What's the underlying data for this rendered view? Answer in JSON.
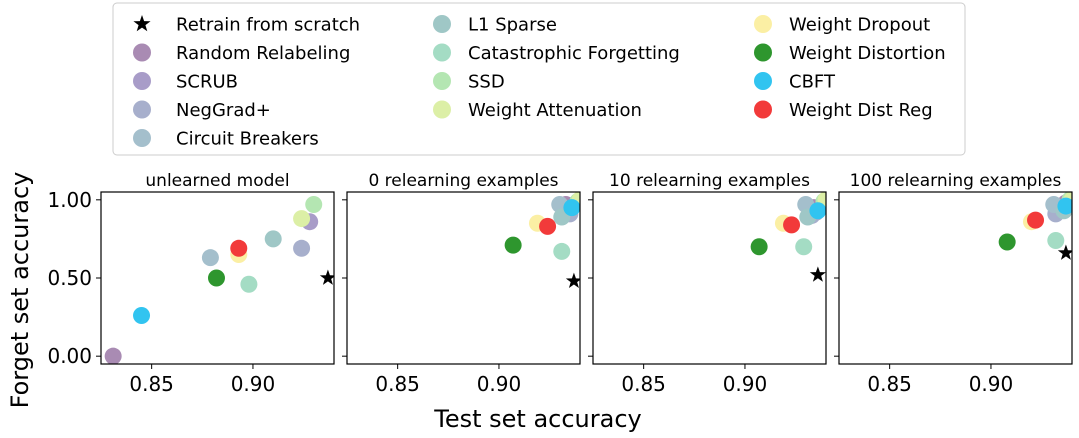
{
  "methods": [
    {
      "name": "Retrain from scratch",
      "color": "#000000",
      "marker": "star"
    },
    {
      "name": "Random Relabeling",
      "color": "#a98bb3",
      "marker": "circle"
    },
    {
      "name": "SCRUB",
      "color": "#a89cc8",
      "marker": "circle"
    },
    {
      "name": "NegGrad+",
      "color": "#a7afcc",
      "marker": "circle"
    },
    {
      "name": "Circuit Breakers",
      "color": "#a4bfcc",
      "marker": "circle"
    },
    {
      "name": "L1 Sparse",
      "color": "#9fc7c6",
      "marker": "circle"
    },
    {
      "name": "Catastrophic Forgetting",
      "color": "#a4dcc4",
      "marker": "circle"
    },
    {
      "name": "SSD",
      "color": "#b4e6b2",
      "marker": "circle"
    },
    {
      "name": "Weight Attenuation",
      "color": "#dcefa6",
      "marker": "circle"
    },
    {
      "name": "Weight Dropout",
      "color": "#fbefa4",
      "marker": "circle"
    },
    {
      "name": "Weight Distortion",
      "color": "#2e962e",
      "marker": "circle"
    },
    {
      "name": "CBFT",
      "color": "#31c4f0",
      "marker": "circle"
    },
    {
      "name": "Weight Dist Reg",
      "color": "#f23a3a",
      "marker": "circle"
    }
  ],
  "chart_data": {
    "type": "scatter",
    "xlabel": "Test set accuracy",
    "ylabel": "Forget set accuracy",
    "xlim": [
      0.825,
      0.94
    ],
    "ylim": [
      -0.05,
      1.05
    ],
    "xticks": [
      "0.85",
      "0.90"
    ],
    "yticks": [
      "0.00",
      "0.50",
      "1.00"
    ],
    "panels": [
      {
        "title": "unlearned model",
        "points": [
          {
            "method": "Retrain from scratch",
            "x": 0.937,
            "y": 0.5
          },
          {
            "method": "Random Relabeling",
            "x": 0.831,
            "y": 0.0
          },
          {
            "method": "SCRUB",
            "x": 0.928,
            "y": 0.86
          },
          {
            "method": "NegGrad+",
            "x": 0.924,
            "y": 0.69
          },
          {
            "method": "Circuit Breakers",
            "x": 0.879,
            "y": 0.63
          },
          {
            "method": "L1 Sparse",
            "x": 0.91,
            "y": 0.75
          },
          {
            "method": "Catastrophic Forgetting",
            "x": 0.898,
            "y": 0.46
          },
          {
            "method": "SSD",
            "x": 0.93,
            "y": 0.97
          },
          {
            "method": "Weight Attenuation",
            "x": 0.924,
            "y": 0.88
          },
          {
            "method": "Weight Dropout",
            "x": 0.893,
            "y": 0.65
          },
          {
            "method": "Weight Distortion",
            "x": 0.882,
            "y": 0.5
          },
          {
            "method": "CBFT",
            "x": 0.845,
            "y": 0.26
          },
          {
            "method": "Weight Dist Reg",
            "x": 0.893,
            "y": 0.69
          }
        ]
      },
      {
        "title": "0 relearning examples",
        "points": [
          {
            "method": "Random Relabeling",
            "x": 0.933,
            "y": 0.97
          },
          {
            "method": "SCRUB",
            "x": 0.934,
            "y": 0.93
          },
          {
            "method": "NegGrad+",
            "x": 0.935,
            "y": 0.91
          },
          {
            "method": "Circuit Breakers",
            "x": 0.93,
            "y": 0.97
          },
          {
            "method": "L1 Sparse",
            "x": 0.931,
            "y": 0.89
          },
          {
            "method": "Catastrophic Forgetting",
            "x": 0.931,
            "y": 0.67
          },
          {
            "method": "SSD",
            "x": 0.939,
            "y": 0.99
          },
          {
            "method": "Weight Attenuation",
            "x": 0.94,
            "y": 1.0
          },
          {
            "method": "Weight Dropout",
            "x": 0.919,
            "y": 0.85
          },
          {
            "method": "Weight Distortion",
            "x": 0.907,
            "y": 0.71
          },
          {
            "method": "CBFT",
            "x": 0.936,
            "y": 0.95
          },
          {
            "method": "Weight Dist Reg",
            "x": 0.924,
            "y": 0.83
          },
          {
            "method": "Retrain from scratch",
            "x": 0.937,
            "y": 0.48
          }
        ]
      },
      {
        "title": "10 relearning examples",
        "points": [
          {
            "method": "Random Relabeling",
            "x": 0.934,
            "y": 0.95
          },
          {
            "method": "SCRUB",
            "x": 0.935,
            "y": 0.92
          },
          {
            "method": "NegGrad+",
            "x": 0.933,
            "y": 0.9
          },
          {
            "method": "Circuit Breakers",
            "x": 0.93,
            "y": 0.97
          },
          {
            "method": "L1 Sparse",
            "x": 0.931,
            "y": 0.89
          },
          {
            "method": "Catastrophic Forgetting",
            "x": 0.929,
            "y": 0.7
          },
          {
            "method": "SSD",
            "x": 0.939,
            "y": 0.99
          },
          {
            "method": "Weight Attenuation",
            "x": 0.94,
            "y": 1.0
          },
          {
            "method": "Weight Dropout",
            "x": 0.919,
            "y": 0.85
          },
          {
            "method": "Weight Distortion",
            "x": 0.907,
            "y": 0.7
          },
          {
            "method": "CBFT",
            "x": 0.936,
            "y": 0.93
          },
          {
            "method": "Weight Dist Reg",
            "x": 0.923,
            "y": 0.84
          },
          {
            "method": "Retrain from scratch",
            "x": 0.936,
            "y": 0.52
          }
        ]
      },
      {
        "title": "100 relearning examples",
        "points": [
          {
            "method": "Random Relabeling",
            "x": 0.937,
            "y": 0.98
          },
          {
            "method": "SCRUB",
            "x": 0.936,
            "y": 0.95
          },
          {
            "method": "NegGrad+",
            "x": 0.932,
            "y": 0.91
          },
          {
            "method": "Circuit Breakers",
            "x": 0.931,
            "y": 0.97
          },
          {
            "method": "L1 Sparse",
            "x": 0.936,
            "y": 0.93
          },
          {
            "method": "Catastrophic Forgetting",
            "x": 0.932,
            "y": 0.74
          },
          {
            "method": "SSD",
            "x": 0.939,
            "y": 1.0
          },
          {
            "method": "Weight Attenuation",
            "x": 0.94,
            "y": 1.0
          },
          {
            "method": "Weight Dropout",
            "x": 0.92,
            "y": 0.86
          },
          {
            "method": "Weight Distortion",
            "x": 0.908,
            "y": 0.73
          },
          {
            "method": "CBFT",
            "x": 0.937,
            "y": 0.96
          },
          {
            "method": "Weight Dist Reg",
            "x": 0.922,
            "y": 0.87
          },
          {
            "method": "Retrain from scratch",
            "x": 0.937,
            "y": 0.66
          }
        ]
      }
    ]
  }
}
